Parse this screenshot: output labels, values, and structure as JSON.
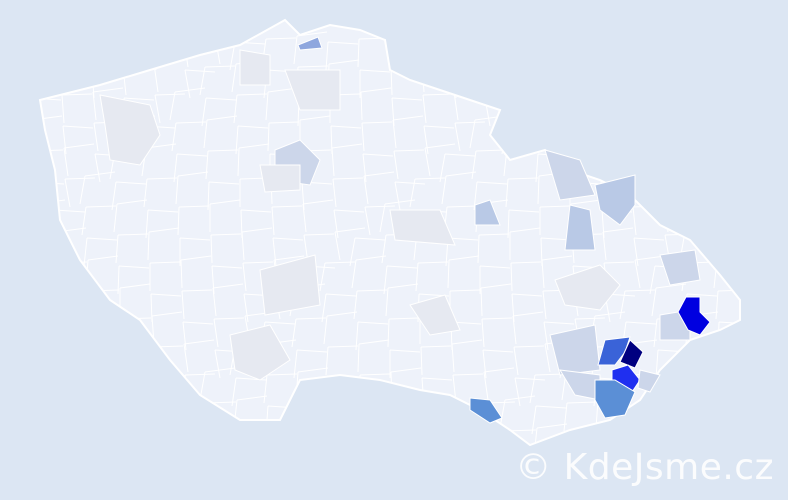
{
  "watermark": "© KdeJsme.cz",
  "colors": {
    "background": "#dce6f3",
    "base": "#eef2fa",
    "border": "#ffffff",
    "level_1": "#e6e9f1",
    "level_2": "#ccd6ea",
    "level_3": "#b9c9e6",
    "level_4": "#8fa7de",
    "level_5": "#5b8fd6",
    "level_6": "#3a63d8",
    "level_7": "#1f2ff0",
    "level_8": "#0000e0",
    "level_9": "#000080"
  }
}
